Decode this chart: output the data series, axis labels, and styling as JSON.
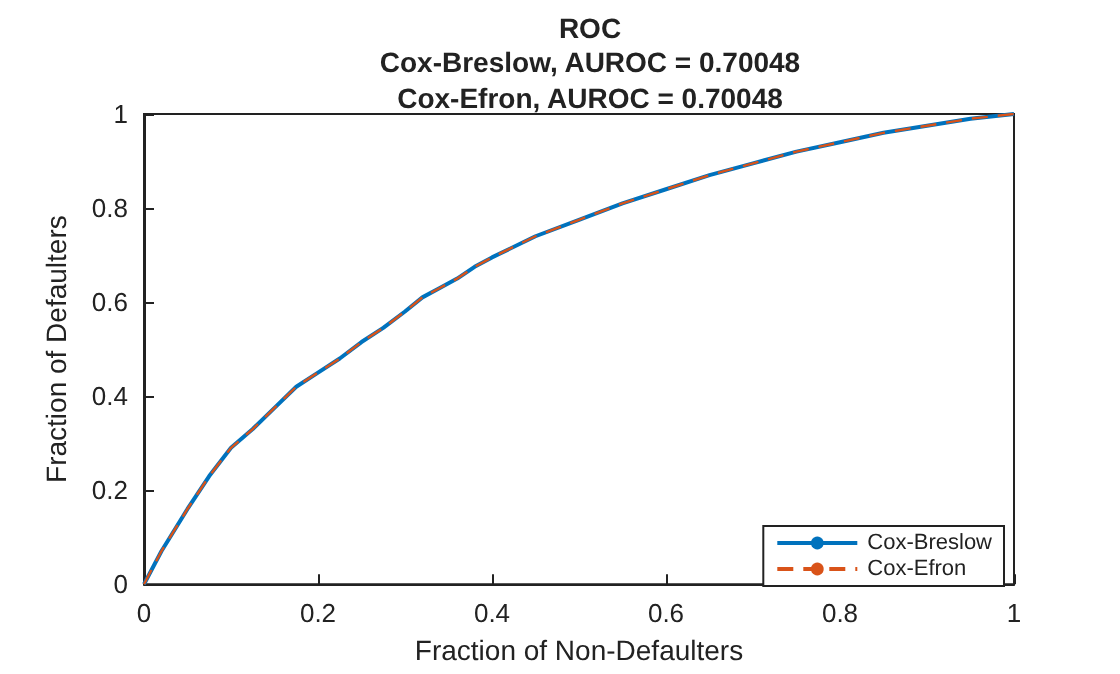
{
  "chart_data": {
    "type": "line",
    "title": "ROC",
    "subtitle": "Cox-Breslow, AUROC = 0.70048\nCox-Efron, AUROC = 0.70048",
    "xlabel": "Fraction of Non-Defaulters",
    "ylabel": "Fraction of Defaulters",
    "x": [
      0,
      0.02,
      0.05,
      0.075,
      0.1,
      0.125,
      0.15,
      0.175,
      0.2,
      0.225,
      0.25,
      0.275,
      0.3,
      0.32,
      0.34,
      0.36,
      0.38,
      0.4,
      0.45,
      0.5,
      0.55,
      0.6,
      0.65,
      0.7,
      0.75,
      0.8,
      0.85,
      0.9,
      0.95,
      1
    ],
    "series": [
      {
        "name": "Cox-Breslow",
        "color": "#0072bd",
        "line_style": "solid",
        "values": [
          0,
          0.07,
          0.16,
          0.23,
          0.29,
          0.33,
          0.375,
          0.42,
          0.45,
          0.48,
          0.515,
          0.545,
          0.58,
          0.61,
          0.63,
          0.65,
          0.675,
          0.695,
          0.74,
          0.775,
          0.81,
          0.84,
          0.87,
          0.895,
          0.92,
          0.94,
          0.96,
          0.975,
          0.99,
          1
        ]
      },
      {
        "name": "Cox-Efron",
        "color": "#d95319",
        "line_style": "dashed",
        "values": [
          0,
          0.07,
          0.16,
          0.23,
          0.29,
          0.33,
          0.375,
          0.42,
          0.45,
          0.48,
          0.515,
          0.545,
          0.58,
          0.61,
          0.63,
          0.65,
          0.675,
          0.695,
          0.74,
          0.775,
          0.81,
          0.84,
          0.87,
          0.895,
          0.92,
          0.94,
          0.96,
          0.975,
          0.99,
          1
        ]
      }
    ],
    "xlim": [
      0,
      1
    ],
    "xticks": [
      0,
      0.2,
      0.4,
      0.6,
      0.8,
      1
    ],
    "ylim": [
      0,
      1
    ],
    "yticks": [
      0,
      0.2,
      0.4,
      0.6,
      0.8,
      1
    ],
    "grid": false,
    "legend": "bottom right",
    "marker": "none"
  }
}
